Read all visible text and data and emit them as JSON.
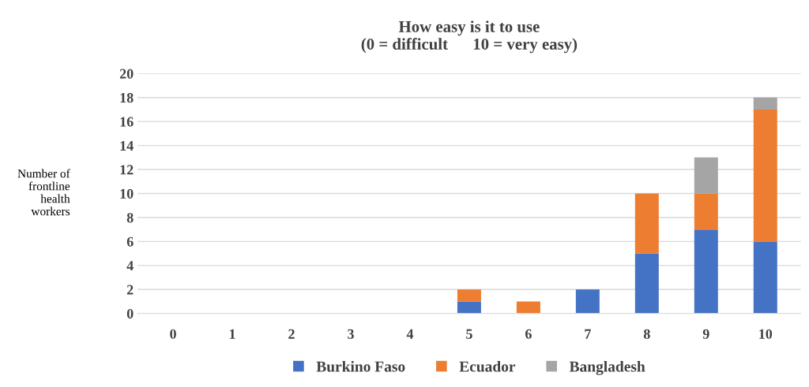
{
  "chart_data": {
    "type": "bar",
    "stacked": true,
    "title": "How easy is it to use\n(0 = difficult      10 = very easy)",
    "ylabel": "Number of\nfrontline\nhealth\nworkers",
    "categories": [
      "0",
      "1",
      "2",
      "3",
      "4",
      "5",
      "6",
      "7",
      "8",
      "9",
      "10"
    ],
    "series": [
      {
        "name": "Burkino Faso",
        "color": "#4472c4",
        "values": [
          0,
          0,
          0,
          0,
          0,
          1,
          0,
          2,
          5,
          7,
          6
        ]
      },
      {
        "name": "Ecuador",
        "color": "#ed7d31",
        "values": [
          0,
          0,
          0,
          0,
          0,
          1,
          1,
          0,
          5,
          3,
          11
        ]
      },
      {
        "name": "Bangladesh",
        "color": "#a5a5a5",
        "values": [
          0,
          0,
          0,
          0,
          0,
          0,
          0,
          0,
          0,
          3,
          1
        ]
      }
    ],
    "ylim": [
      0,
      20
    ],
    "yticks": [
      0,
      2,
      4,
      6,
      8,
      10,
      12,
      14,
      16,
      18,
      20
    ],
    "grid": "y",
    "legend": "bottom"
  }
}
